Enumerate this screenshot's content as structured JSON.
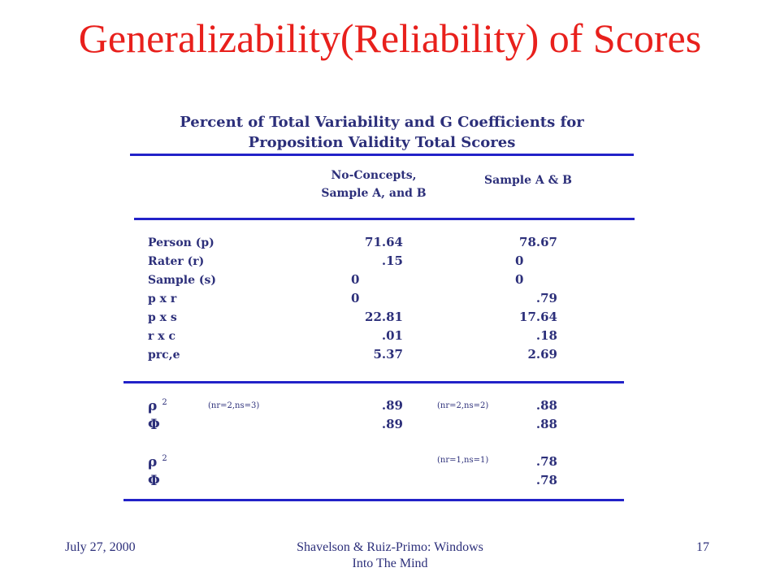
{
  "slide": {
    "title": "Generalizability(Reliability) of Scores"
  },
  "table": {
    "caption_line1": "Percent of Total Variability and G Coefficients for",
    "caption_line2": "Proposition Validity Total Scores",
    "col1_header_line1": "No-Concepts,",
    "col1_header_line2": "Sample A, and B",
    "col2_header": "Sample A & B",
    "rows": [
      {
        "label": "Person (p)",
        "col1": "71.64",
        "col2": "78.67"
      },
      {
        "label": "Rater (r)",
        "col1": ".15",
        "col2": "0"
      },
      {
        "label": "Sample (s)",
        "col1": "0",
        "col2": "0"
      },
      {
        "label": "p x r",
        "col1": "0",
        "col2": ".79"
      },
      {
        "label": "p x s",
        "col1": "22.81",
        "col2": "17.64"
      },
      {
        "label": "r x c",
        "col1": ".01",
        "col2": ".18"
      },
      {
        "label": "prc,e",
        "col1": "5.37",
        "col2": "2.69"
      }
    ],
    "coefficients": {
      "rho_symbol": "ρ",
      "phi_symbol": "Φ",
      "superscript": "2",
      "cond_a": "(nr=2,ns=3)",
      "cond_b": "(nr=2,ns=2)",
      "cond_c": "(nr=1,ns=1)",
      "rho_a_col1": ".89",
      "rho_a_col2": ".88",
      "phi_a_col1": ".89",
      "phi_a_col2": ".88",
      "rho_b_col2": ".78",
      "phi_b_col2": ".78"
    }
  },
  "footer": {
    "date": "July 27, 2000",
    "author_line1": "Shavelson & Ruiz-Primo: Windows",
    "author_line2": "Into The Mind",
    "page_number": "17"
  }
}
